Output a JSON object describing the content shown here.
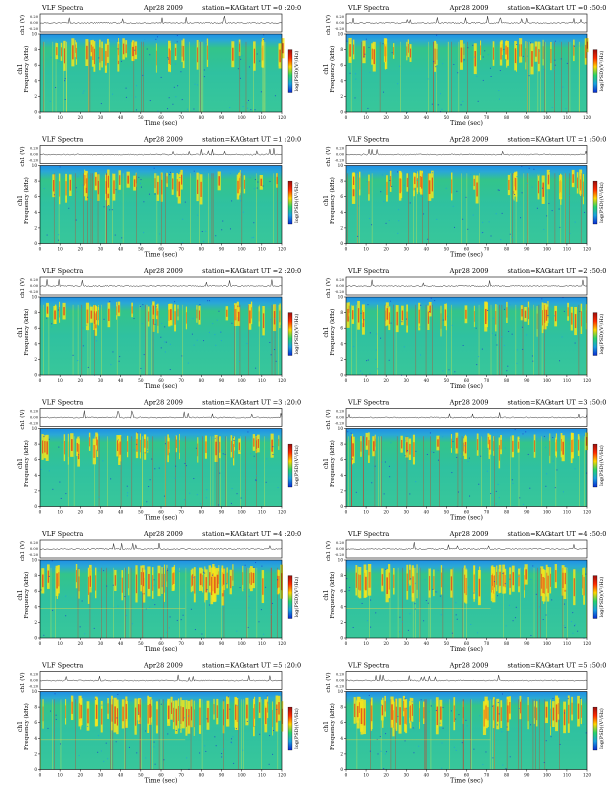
{
  "page": {
    "header_left": "VLF Spectra",
    "date": "Apr28 2009",
    "station": "station=KAG",
    "ut_prefix": "start UT ="
  },
  "axis_labels": {
    "waveform_ylabel": "ch1 (V)",
    "spec_ylabel_top": "ch1",
    "spec_ylabel": "Frequency (kHz)",
    "xlabel": "Time (sec)",
    "colorbar_label": "log(PSD)(V²/Hz)"
  },
  "panels": [
    {
      "start_ut": "0 :20:0"
    },
    {
      "start_ut": "0 :50:0"
    },
    {
      "start_ut": "1 :20:0"
    },
    {
      "start_ut": "1 :50:0"
    },
    {
      "start_ut": "2 :20:0"
    },
    {
      "start_ut": "2 :50:0"
    },
    {
      "start_ut": "3 :20:0"
    },
    {
      "start_ut": "3 :50:0"
    },
    {
      "start_ut": "4 :20:0"
    },
    {
      "start_ut": "4 :50:0"
    },
    {
      "start_ut": "5 :20:0"
    },
    {
      "start_ut": "5 :50:0"
    }
  ],
  "chart_data": {
    "type": "heatmap",
    "xlabel": "Time (sec)",
    "ylabel": "Frequency (kHz)",
    "xlim": [
      0,
      120
    ],
    "ylim": [
      0,
      10
    ],
    "x_ticks": [
      0,
      10,
      20,
      30,
      40,
      50,
      60,
      70,
      80,
      90,
      100,
      110,
      120
    ],
    "y_ticks": [
      0,
      2,
      4,
      6,
      8,
      10
    ],
    "waveform_ticks": [
      "0.20",
      "0.00",
      "-0.20"
    ],
    "waveform_ylabel": "ch1 (V)",
    "colorbar": {
      "label": "log(PSD)(V²/Hz)",
      "colors": [
        "#9a1010",
        "#ff2a00",
        "#ffd400",
        "#27d36a",
        "#1aa0e0",
        "#0a2bd0"
      ]
    },
    "grid": false
  }
}
